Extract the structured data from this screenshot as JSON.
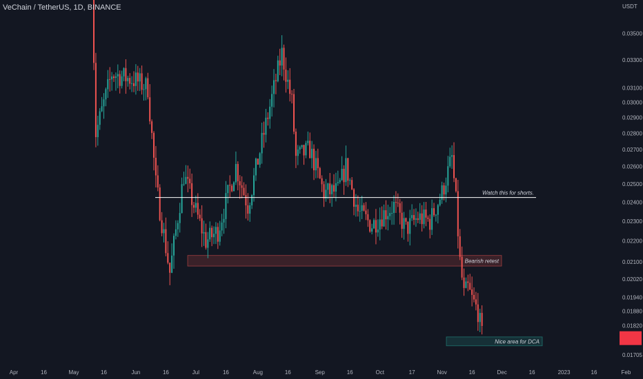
{
  "header": {
    "title": "VeChain / TetherUS, 1D, BINANCE"
  },
  "colors": {
    "background": "#131722",
    "up": "#26a69a",
    "down": "#ef5350",
    "support_line": "#ffffff",
    "resistance_zone": "#ef5350",
    "dca_zone": "#26a69a",
    "price_label": "#f23645"
  },
  "chart_data": {
    "type": "candlestick",
    "title": "VeChain / TetherUS, 1D, BINANCE",
    "y_unit": "USDT",
    "y_scale": "log",
    "y_ticks": [
      "0.03500",
      "0.03300",
      "0.03100",
      "0.03000",
      "0.02900",
      "0.02800",
      "0.02700",
      "0.02600",
      "0.02500",
      "0.02400",
      "0.02300",
      "0.02200",
      "0.02100",
      "0.02020",
      "0.01940",
      "0.01880",
      "0.01820",
      "0.01705"
    ],
    "x_ticks": [
      "Apr",
      "16",
      "May",
      "16",
      "Jun",
      "16",
      "Jul",
      "16",
      "Aug",
      "16",
      "Sep",
      "16",
      "Oct",
      "17",
      "Nov",
      "16",
      "Dec",
      "16",
      "2023",
      "16",
      "Feb"
    ],
    "current_price": {
      "label": "",
      "value": 0.0177
    },
    "annotations": [
      {
        "text": "Watch this for shorts.",
        "type": "horizontal-line",
        "price": 0.02425
      },
      {
        "text": "Bearish retest",
        "type": "zone",
        "price_top": 0.0213,
        "price_bottom": 0.0208
      },
      {
        "text": "Nice area for DCA",
        "type": "zone",
        "price_top": 0.01775,
        "price_bottom": 0.0174
      }
    ],
    "candles_note": "Approximate daily OHLC from ~May 10 to ~Nov 21, 2022",
    "anchors": [
      {
        "date": "2022-05-10",
        "price": 0.0395
      },
      {
        "date": "2022-05-12",
        "price": 0.028
      },
      {
        "date": "2022-05-20",
        "price": 0.032
      },
      {
        "date": "2022-06-01",
        "price": 0.0315
      },
      {
        "date": "2022-06-07",
        "price": 0.031
      },
      {
        "date": "2022-06-11",
        "price": 0.025
      },
      {
        "date": "2022-06-18",
        "price": 0.0205
      },
      {
        "date": "2022-06-25",
        "price": 0.0255
      },
      {
        "date": "2022-07-01",
        "price": 0.0235
      },
      {
        "date": "2022-07-06",
        "price": 0.022
      },
      {
        "date": "2022-07-12",
        "price": 0.0225
      },
      {
        "date": "2022-07-21",
        "price": 0.026
      },
      {
        "date": "2022-07-27",
        "price": 0.0238
      },
      {
        "date": "2022-08-04",
        "price": 0.028
      },
      {
        "date": "2022-08-13",
        "price": 0.0335
      },
      {
        "date": "2022-08-18",
        "price": 0.03
      },
      {
        "date": "2022-08-20",
        "price": 0.0265
      },
      {
        "date": "2022-08-27",
        "price": 0.027
      },
      {
        "date": "2022-09-03",
        "price": 0.0245
      },
      {
        "date": "2022-09-10",
        "price": 0.0246
      },
      {
        "date": "2022-09-14",
        "price": 0.026
      },
      {
        "date": "2022-09-20",
        "price": 0.0235
      },
      {
        "date": "2022-09-27",
        "price": 0.0228
      },
      {
        "date": "2022-10-03",
        "price": 0.0234
      },
      {
        "date": "2022-10-08",
        "price": 0.0238
      },
      {
        "date": "2022-10-14",
        "price": 0.0226
      },
      {
        "date": "2022-10-20",
        "price": 0.0232
      },
      {
        "date": "2022-10-26",
        "price": 0.023
      },
      {
        "date": "2022-11-01",
        "price": 0.0245
      },
      {
        "date": "2022-11-06",
        "price": 0.0265
      },
      {
        "date": "2022-11-08",
        "price": 0.024
      },
      {
        "date": "2022-11-10",
        "price": 0.021
      },
      {
        "date": "2022-11-12",
        "price": 0.0195
      },
      {
        "date": "2022-11-14",
        "price": 0.0198
      },
      {
        "date": "2022-11-16",
        "price": 0.0193
      },
      {
        "date": "2022-11-19",
        "price": 0.0188
      },
      {
        "date": "2022-11-21",
        "price": 0.0178
      }
    ]
  }
}
